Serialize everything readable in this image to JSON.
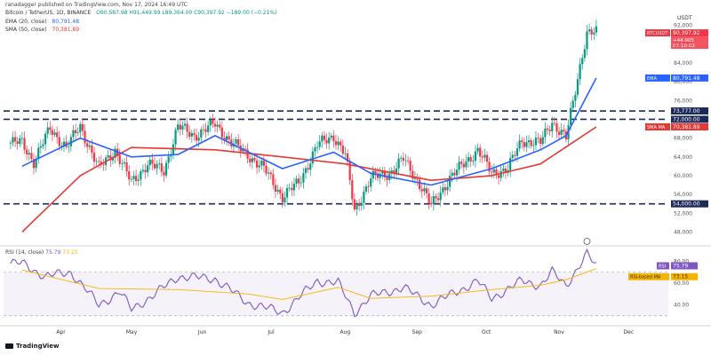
{
  "header": {
    "publisher": "ranadagger published on TradingView.com, Nov 17, 2024 16:49 UTC",
    "symbol_line": "Bitcoin / TetherUS, 1D, BINANCE",
    "ohlc": "O90,587.98  H91,449.99  L89,364.00  C90,397.92  −189.00 (−0.21%)",
    "ema_label": "EMA (20, close)",
    "ema_value": "80,791.48",
    "sma_label": "SMA (50, close)",
    "sma_value": "70,381.89",
    "rsi_label": "RSI (14, close)",
    "rsi_value": "75.79",
    "rsi_ma_value": "73.15",
    "brand": "TradingView",
    "currency": "USDT"
  },
  "colors": {
    "up": "#089981",
    "down": "#f23645",
    "ema": "#2962ff",
    "sma": "#e53935",
    "rsi": "#7e57c2",
    "rsi_ma": "#f5b400",
    "level_line": "#1c2a5a"
  },
  "chart_data": [
    {
      "type": "candlestick",
      "title": "Bitcoin / TetherUS, 1D, BINANCE",
      "x_ticks": [
        "Apr",
        "May",
        "Jun",
        "Jul",
        "Aug",
        "Sep",
        "Oct",
        "Nov",
        "Dec"
      ],
      "y_ticks": [
        "48,000",
        "52,000",
        "56,000",
        "60,000",
        "64,000",
        "68,000",
        "72,000",
        "76,000",
        "80,000",
        "84,000",
        "88,000",
        "92,000"
      ],
      "ylim": [
        46000,
        94000
      ],
      "horizontal_levels": [
        {
          "value": 73777,
          "label": "73,777.00"
        },
        {
          "value": 72000,
          "label": "72,000.00"
        },
        {
          "value": 54000,
          "label": "54,000.00"
        }
      ],
      "price_tags": [
        {
          "name": "BTCUSDT",
          "value": 90397.92,
          "text": "90,397.92",
          "sub": "+44.905",
          "sub2": "07:10:03"
        },
        {
          "name": "EMA",
          "value": 80791.48,
          "text": "80,791.48"
        },
        {
          "name": "SMA MA",
          "value": 70381.89,
          "text": "70,381.89"
        }
      ],
      "price_path": [
        [
          "2024-03-15",
          67000
        ],
        [
          "2024-03-20",
          63000
        ],
        [
          "2024-03-27",
          70000
        ],
        [
          "2024-04-03",
          66000
        ],
        [
          "2024-04-09",
          70500
        ],
        [
          "2024-04-17",
          61500
        ],
        [
          "2024-04-24",
          65500
        ],
        [
          "2024-05-01",
          58500
        ],
        [
          "2024-05-08",
          62500
        ],
        [
          "2024-05-15",
          61000
        ],
        [
          "2024-05-21",
          70500
        ],
        [
          "2024-05-28",
          68500
        ],
        [
          "2024-06-06",
          71000
        ],
        [
          "2024-06-13",
          67000
        ],
        [
          "2024-06-20",
          64500
        ],
        [
          "2024-06-27",
          61500
        ],
        [
          "2024-07-05",
          55500
        ],
        [
          "2024-07-12",
          58500
        ],
        [
          "2024-07-20",
          66500
        ],
        [
          "2024-07-27",
          68500
        ],
        [
          "2024-08-01",
          64500
        ],
        [
          "2024-08-05",
          52500
        ],
        [
          "2024-08-12",
          59500
        ],
        [
          "2024-08-20",
          60500
        ],
        [
          "2024-08-26",
          63500
        ],
        [
          "2024-09-03",
          57500
        ],
        [
          "2024-09-07",
          53500
        ],
        [
          "2024-09-15",
          59500
        ],
        [
          "2024-09-27",
          65500
        ],
        [
          "2024-10-03",
          60500
        ],
        [
          "2024-10-10",
          61500
        ],
        [
          "2024-10-16",
          67500
        ],
        [
          "2024-10-24",
          67000
        ],
        [
          "2024-10-29",
          71500
        ],
        [
          "2024-11-04",
          68000
        ],
        [
          "2024-11-07",
          75500
        ],
        [
          "2024-11-11",
          86000
        ],
        [
          "2024-11-13",
          90500
        ],
        [
          "2024-11-17",
          90397
        ]
      ],
      "series": [
        {
          "name": "EMA (20, close)",
          "points": [
            [
              "2024-03-15",
              62000
            ],
            [
              "2024-04-09",
              68000
            ],
            [
              "2024-05-01",
              64000
            ],
            [
              "2024-05-21",
              64500
            ],
            [
              "2024-06-06",
              68500
            ],
            [
              "2024-07-05",
              61500
            ],
            [
              "2024-07-27",
              65000
            ],
            [
              "2024-08-12",
              60500
            ],
            [
              "2024-09-07",
              58000
            ],
            [
              "2024-10-03",
              61500
            ],
            [
              "2024-10-24",
              65500
            ],
            [
              "2024-11-04",
              68500
            ],
            [
              "2024-11-17",
              80791
            ]
          ]
        },
        {
          "name": "SMA (50, close)",
          "points": [
            [
              "2024-03-15",
              48000
            ],
            [
              "2024-04-09",
              60000
            ],
            [
              "2024-05-01",
              66000
            ],
            [
              "2024-06-06",
              65500
            ],
            [
              "2024-07-05",
              64000
            ],
            [
              "2024-08-01",
              62500
            ],
            [
              "2024-09-07",
              59000
            ],
            [
              "2024-10-03",
              60000
            ],
            [
              "2024-10-24",
              62500
            ],
            [
              "2024-11-17",
              70381
            ]
          ]
        }
      ]
    },
    {
      "type": "line",
      "title": "RSI (14, close)",
      "y_ticks": [
        "40.00",
        "60.00",
        "80.00"
      ],
      "ylim": [
        25,
        90
      ],
      "series": [
        {
          "name": "RSI",
          "points": [
            [
              "2024-03-15",
              78
            ],
            [
              "2024-03-25",
              66
            ],
            [
              "2024-04-05",
              70
            ],
            [
              "2024-04-17",
              40
            ],
            [
              "2024-04-26",
              52
            ],
            [
              "2024-05-01",
              36
            ],
            [
              "2024-05-10",
              48
            ],
            [
              "2024-05-21",
              66
            ],
            [
              "2024-06-06",
              64
            ],
            [
              "2024-06-20",
              42
            ],
            [
              "2024-07-05",
              33
            ],
            [
              "2024-07-20",
              62
            ],
            [
              "2024-07-29",
              60
            ],
            [
              "2024-08-05",
              33
            ],
            [
              "2024-08-12",
              48
            ],
            [
              "2024-08-26",
              56
            ],
            [
              "2024-09-07",
              40
            ],
            [
              "2024-09-27",
              62
            ],
            [
              "2024-10-03",
              46
            ],
            [
              "2024-10-16",
              62
            ],
            [
              "2024-10-24",
              58
            ],
            [
              "2024-10-29",
              70
            ],
            [
              "2024-11-04",
              58
            ],
            [
              "2024-11-13",
              86
            ],
            [
              "2024-11-17",
              75.79
            ]
          ]
        },
        {
          "name": "RSI-based MA",
          "points": [
            [
              "2024-03-15",
              72
            ],
            [
              "2024-04-17",
              55
            ],
            [
              "2024-05-21",
              54
            ],
            [
              "2024-06-20",
              50
            ],
            [
              "2024-07-05",
              45
            ],
            [
              "2024-07-29",
              56
            ],
            [
              "2024-08-12",
              46
            ],
            [
              "2024-09-07",
              48
            ],
            [
              "2024-10-03",
              54
            ],
            [
              "2024-10-24",
              58
            ],
            [
              "2024-11-04",
              63
            ],
            [
              "2024-11-17",
              73.15
            ]
          ]
        }
      ],
      "levels": [
        30,
        70
      ],
      "tags": [
        {
          "name": "RSI",
          "text": "75.79"
        },
        {
          "name": "RSI-based MA",
          "text": "73.15"
        }
      ]
    }
  ]
}
